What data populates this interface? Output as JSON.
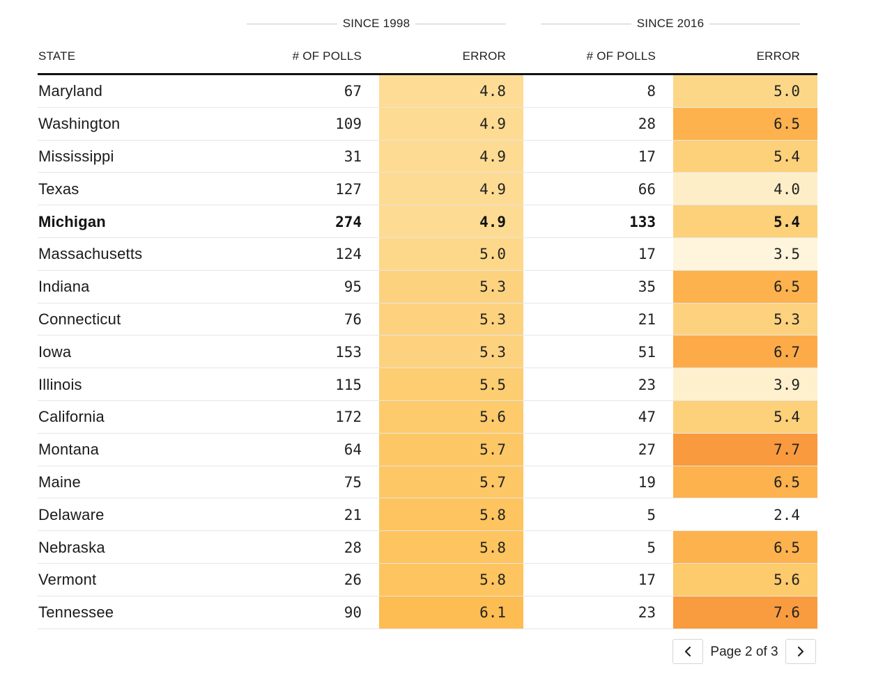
{
  "header": {
    "group_since_1998": "SINCE 1998",
    "group_since_2016": "SINCE 2016",
    "col_state": "STATE",
    "col_polls_1998": "# OF POLLS",
    "col_error_1998": "ERROR",
    "col_polls_2016": "# OF POLLS",
    "col_error_2016": "ERROR"
  },
  "pagination": {
    "label": "Page 2 of 3",
    "prev_icon": "chevron-left-icon",
    "next_icon": "chevron-right-icon"
  },
  "colors": {
    "scale_very_light": "#fff3d8",
    "scale_light": "#fde3a6",
    "scale_medium": "#fdcf6f",
    "scale_warm": "#fdb64e",
    "scale_hot": "#f99a3e",
    "border_dark": "#111111",
    "row_separator": "#e6e6e6"
  },
  "chart_data": {
    "type": "table",
    "columns": [
      "STATE",
      "# OF POLLS",
      "ERROR",
      "# OF POLLS",
      "ERROR"
    ],
    "column_groups": [
      "SINCE 1998",
      "SINCE 2016"
    ],
    "highlighted_row": "Michigan",
    "rows": [
      {
        "state": "Maryland",
        "polls_1998": "67",
        "error_1998": "4.8",
        "polls_2016": "8",
        "error_2016": "5.0",
        "color_1998": "#fedc95",
        "color_2016": "#fdd788"
      },
      {
        "state": "Washington",
        "polls_1998": "109",
        "error_1998": "4.9",
        "polls_2016": "28",
        "error_2016": "6.5",
        "color_1998": "#fedb92",
        "color_2016": "#fdb24d"
      },
      {
        "state": "Mississippi",
        "polls_1998": "31",
        "error_1998": "4.9",
        "polls_2016": "17",
        "error_2016": "5.4",
        "color_1998": "#fedb92",
        "color_2016": "#fdd07a"
      },
      {
        "state": "Texas",
        "polls_1998": "127",
        "error_1998": "4.9",
        "polls_2016": "66",
        "error_2016": "4.0",
        "color_1998": "#fedb92",
        "color_2016": "#feeec8"
      },
      {
        "state": "Michigan",
        "polls_1998": "274",
        "error_1998": "4.9",
        "polls_2016": "133",
        "error_2016": "5.4",
        "color_1998": "#fedb92",
        "color_2016": "#fdd07a",
        "bold": true
      },
      {
        "state": "Massachusetts",
        "polls_1998": "124",
        "error_1998": "5.0",
        "polls_2016": "17",
        "error_2016": "3.5",
        "color_1998": "#fed88a",
        "color_2016": "#fff4dc"
      },
      {
        "state": "Indiana",
        "polls_1998": "95",
        "error_1998": "5.3",
        "polls_2016": "35",
        "error_2016": "6.5",
        "color_1998": "#fdd27f",
        "color_2016": "#fdb24d"
      },
      {
        "state": "Connecticut",
        "polls_1998": "76",
        "error_1998": "5.3",
        "polls_2016": "21",
        "error_2016": "5.3",
        "color_1998": "#fdd27f",
        "color_2016": "#fdd27f"
      },
      {
        "state": "Iowa",
        "polls_1998": "153",
        "error_1998": "5.3",
        "polls_2016": "51",
        "error_2016": "6.7",
        "color_1998": "#fdd27f",
        "color_2016": "#fcab48"
      },
      {
        "state": "Illinois",
        "polls_1998": "115",
        "error_1998": "5.5",
        "polls_2016": "23",
        "error_2016": "3.9",
        "color_1998": "#fdcd72",
        "color_2016": "#fff0cd"
      },
      {
        "state": "California",
        "polls_1998": "172",
        "error_1998": "5.6",
        "polls_2016": "47",
        "error_2016": "5.4",
        "color_1998": "#fdca6c",
        "color_2016": "#fdd07a"
      },
      {
        "state": "Montana",
        "polls_1998": "64",
        "error_1998": "5.7",
        "polls_2016": "27",
        "error_2016": "7.7",
        "color_1998": "#fdc765",
        "color_2016": "#f99a3e"
      },
      {
        "state": "Maine",
        "polls_1998": "75",
        "error_1998": "5.7",
        "polls_2016": "19",
        "error_2016": "6.5",
        "color_1998": "#fdc765",
        "color_2016": "#fdb24d"
      },
      {
        "state": "Delaware",
        "polls_1998": "21",
        "error_1998": "5.8",
        "polls_2016": "5",
        "error_2016": "2.4",
        "color_1998": "#fdc45f",
        "color_2016": "#ffffff"
      },
      {
        "state": "Nebraska",
        "polls_1998": "28",
        "error_1998": "5.8",
        "polls_2016": "5",
        "error_2016": "6.5",
        "color_1998": "#fdc45f",
        "color_2016": "#fdb24d"
      },
      {
        "state": "Vermont",
        "polls_1998": "26",
        "error_1998": "5.8",
        "polls_2016": "17",
        "error_2016": "5.6",
        "color_1998": "#fdc45f",
        "color_2016": "#fdca6c"
      },
      {
        "state": "Tennessee",
        "polls_1998": "90",
        "error_1998": "6.1",
        "polls_2016": "23",
        "error_2016": "7.6",
        "color_1998": "#fdbd52",
        "color_2016": "#f99c3f"
      }
    ]
  }
}
